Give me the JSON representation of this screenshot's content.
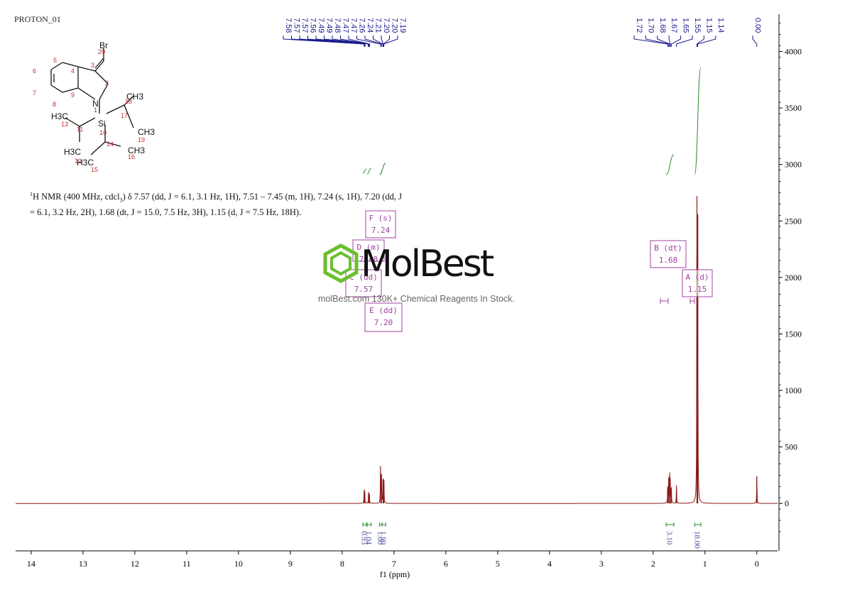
{
  "experiment_label": "PROTON_01",
  "watermark": {
    "brand": "MolBest",
    "tagline": "molBest.com 130K+ Chemical Reagents In Stock."
  },
  "description": {
    "nmr_head": "H NMR (400 MHz, cdcl",
    "nmr_sup": "1",
    "nmr_sub": "3",
    "line1_rest": ") δ 7.57 (dd, J = 6.1, 3.1 Hz, 1H), 7.51 – 7.45 (m, 1H), 7.24 (s, 1H), 7.20 (dd, J",
    "line2": "= 6.1, 3.2 Hz, 2H), 1.68 (dt, J = 15.0, 7.5 Hz, 3H), 1.15 (d, J = 7.5 Hz, 18H)."
  },
  "structure": {
    "labels": [
      "Br",
      "N",
      "Si",
      "H3C",
      "CH3",
      "CH3",
      "H3C",
      "H3C",
      "CH3"
    ],
    "atom_numbers": [
      "20",
      "3",
      "2",
      "4",
      "5",
      "6",
      "7",
      "8",
      "9",
      "1",
      "10",
      "11",
      "13",
      "17",
      "18",
      "19",
      "14",
      "16",
      "12",
      "15"
    ]
  },
  "colors": {
    "spectrum": "#8b1a1a",
    "integral": "#2e8b2e",
    "peak_label": "#1a1a8b",
    "multiplet_box": "#a040a0",
    "accent_logo": "#6abf2e"
  },
  "chart_data": {
    "type": "line",
    "xlabel": "f1 (ppm)",
    "x_ticks": [
      14,
      13,
      12,
      11,
      10,
      9,
      8,
      7,
      6,
      5,
      4,
      3,
      2,
      1,
      0
    ],
    "xlim": [
      14.3,
      -0.4
    ],
    "y_ticks": [
      0,
      500,
      1000,
      1500,
      2000,
      2500,
      3000,
      3500,
      4000
    ],
    "ylim": [
      -420,
      4330
    ],
    "peak_labels": [
      "7.58",
      "7.57",
      "7.57",
      "7.56",
      "7.49",
      "7.49",
      "7.48",
      "7.47",
      "7.47",
      "7.26",
      "7.24",
      "7.21",
      "7.20",
      "7.20",
      "7.19",
      "1.72",
      "1.70",
      "1.68",
      "1.67",
      "1.65",
      "1.55",
      "1.15",
      "1.14",
      "0.00"
    ],
    "peaks": [
      {
        "ppm": 7.575,
        "height": 110
      },
      {
        "ppm": 7.565,
        "height": 95
      },
      {
        "ppm": 7.49,
        "height": 100
      },
      {
        "ppm": 7.475,
        "height": 85
      },
      {
        "ppm": 7.26,
        "height": 330
      },
      {
        "ppm": 7.24,
        "height": 250
      },
      {
        "ppm": 7.21,
        "height": 220
      },
      {
        "ppm": 7.195,
        "height": 210
      },
      {
        "ppm": 1.72,
        "height": 150
      },
      {
        "ppm": 1.7,
        "height": 220
      },
      {
        "ppm": 1.68,
        "height": 250
      },
      {
        "ppm": 1.67,
        "height": 200
      },
      {
        "ppm": 1.65,
        "height": 140
      },
      {
        "ppm": 1.55,
        "height": 160
      },
      {
        "ppm": 1.155,
        "height": 2720
      },
      {
        "ppm": 1.14,
        "height": 2560
      },
      {
        "ppm": 0.0,
        "height": 240
      }
    ],
    "integrals": [
      {
        "from": 7.6,
        "to": 7.53,
        "value": "0.93"
      },
      {
        "from": 7.52,
        "to": 7.44,
        "value": "1.04"
      },
      {
        "from": 7.28,
        "to": 7.23,
        "value": "1.00"
      },
      {
        "from": 7.23,
        "to": 7.16,
        "value": "1.90"
      },
      {
        "from": 1.75,
        "to": 1.6,
        "value": "3.10"
      },
      {
        "from": 1.2,
        "to": 1.08,
        "value": "18.00"
      }
    ],
    "multiplets": [
      {
        "letter": "F (s)",
        "shift": "7.24"
      },
      {
        "letter": "D (m)",
        "shift": "7.48"
      },
      {
        "letter": "C (dd)",
        "shift": "7.57"
      },
      {
        "letter": "E (dd)",
        "shift": "7.20"
      },
      {
        "letter": "B (dt)",
        "shift": "1.68"
      },
      {
        "letter": "A (d)",
        "shift": "1.15"
      }
    ]
  }
}
